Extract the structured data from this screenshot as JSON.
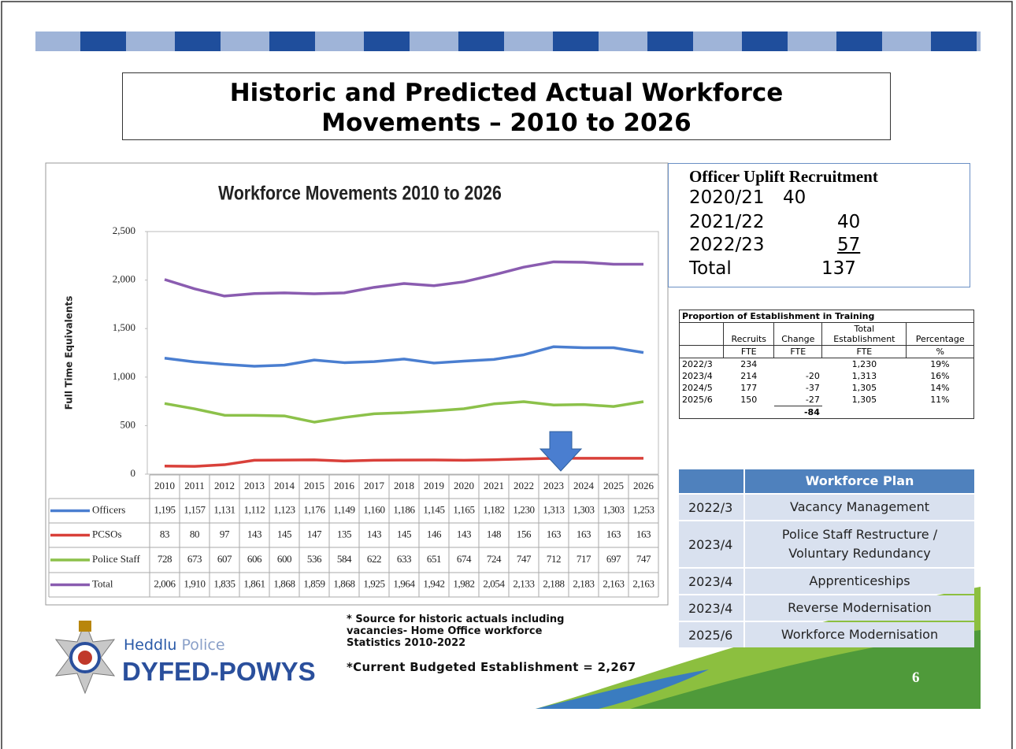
{
  "title": [
    "Historic and Predicted Actual Workforce",
    "Movements – 2010 to 2026"
  ],
  "chart_data": {
    "type": "line",
    "title": "Workforce Movements 2010 to 2026",
    "ylabel": "Full Time Equivalents",
    "categories": [
      "2010",
      "2011",
      "2012",
      "2013",
      "2014",
      "2015",
      "2016",
      "2017",
      "2018",
      "2019",
      "2020",
      "2021",
      "2022",
      "2023",
      "2024",
      "2025",
      "2026"
    ],
    "series": [
      {
        "name": "Officers",
        "color": "#4a7ed0",
        "values": [
          1195,
          1157,
          1131,
          1112,
          1123,
          1176,
          1149,
          1160,
          1186,
          1145,
          1165,
          1182,
          1230,
          1313,
          1303,
          1303,
          1253
        ],
        "value_labels": [
          "1,195",
          "1,157",
          "1,131",
          "1,112",
          "1,123",
          "1,176",
          "1,149",
          "1,160",
          "1,186",
          "1,145",
          "1,165",
          "1,182",
          "1,230",
          "1,313",
          "1,303",
          "1,303",
          "1,253"
        ]
      },
      {
        "name": "PCSOs",
        "color": "#d9403a",
        "values": [
          83,
          80,
          97,
          143,
          145,
          147,
          135,
          143,
          145,
          146,
          143,
          148,
          156,
          163,
          163,
          163,
          163
        ]
      },
      {
        "name": "Police Staff",
        "color": "#8cc14a",
        "values": [
          728,
          673,
          607,
          606,
          600,
          536,
          584,
          622,
          633,
          651,
          674,
          724,
          747,
          712,
          717,
          697,
          747
        ]
      },
      {
        "name": "Total",
        "color": "#8a5cb0",
        "values": [
          2006,
          1910,
          1835,
          1861,
          1868,
          1859,
          1868,
          1925,
          1964,
          1942,
          1982,
          2054,
          2133,
          2188,
          2183,
          2163,
          2163
        ],
        "value_labels": [
          "2,006",
          "1,910",
          "1,835",
          "1,861",
          "1,868",
          "1,859",
          "1,868",
          "1,925",
          "1,964",
          "1,942",
          "1,982",
          "2,054",
          "2,133",
          "2,188",
          "2,183",
          "2,163",
          "2,163"
        ]
      }
    ],
    "ylim": [
      0,
      2500
    ],
    "yticks": [
      0,
      500,
      {
        "value": 1000,
        "label": "1,000"
      },
      {
        "value": 1500,
        "label": "1,500"
      },
      {
        "value": 2000,
        "label": "2,000"
      },
      {
        "value": 2500,
        "label": "2,500"
      }
    ],
    "grid": false
  },
  "uplift": {
    "title": "Officer Uplift Recruitment",
    "rows": [
      {
        "period": "2020/21",
        "value": 40
      },
      {
        "period": "2021/22",
        "value": 40
      },
      {
        "period": "2022/23",
        "value": 57
      },
      {
        "period": "Total",
        "value": 137
      }
    ]
  },
  "training": {
    "title": "Proportion of Establishment in Training",
    "columns": [
      "Recruits",
      "Change",
      "Total Establishment",
      "Percentage"
    ],
    "units": [
      "FTE",
      "FTE",
      "FTE",
      "%"
    ],
    "rows": [
      [
        "2022/3",
        "234",
        null,
        "1,230",
        "19%"
      ],
      [
        "2023/4",
        "214",
        "-20",
        "1,313",
        "16%"
      ],
      [
        "2024/5",
        "177",
        "-37",
        "1,305",
        "14%"
      ],
      [
        "2025/6",
        "150",
        "-27",
        "1,305",
        "11%"
      ]
    ],
    "change_total": "-84"
  },
  "workforce_plan": {
    "title": "Workforce Plan",
    "rows": [
      {
        "year": "2022/3",
        "item": "Vacancy Management"
      },
      {
        "year": "2023/4",
        "item": "Police Staff Restructure / Voluntary Redundancy"
      },
      {
        "year": "2023/4",
        "item": "Apprenticeships"
      },
      {
        "year": "2023/4",
        "item": "Reverse Modernisation"
      },
      {
        "year": "2025/6",
        "item": "Workforce Modernisation"
      }
    ]
  },
  "notes": [
    "* Source for historic actuals including vacancies- Home Office workforce Statistics 2010-2022",
    "*Current Budgeted Establishment = 2,267"
  ],
  "logo": {
    "welsh": "Heddlu",
    "english": "Police",
    "name": "DYFED-POWYS"
  },
  "page_number": 6
}
